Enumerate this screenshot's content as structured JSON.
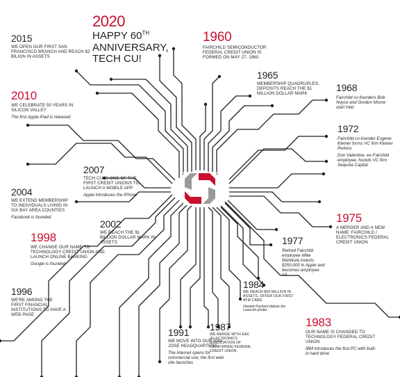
{
  "colors": {
    "accent": "#c8102e",
    "ink": "#231f20",
    "logo_gray": "#9a9a9a"
  },
  "events": {
    "e2020": {
      "year": "2020",
      "caption_a": "HAPPY 60",
      "caption_sup": "TH",
      "caption_b": "ANNIVERSARY,",
      "caption_c": "TECH CU!"
    },
    "e2015": {
      "year": "2015",
      "caption": "WE OPEN OUR FIRST SAN FRANCISCO BRANCH AND REACH $2 BILION IN ASSETS"
    },
    "e2010": {
      "year": "2010",
      "caption": "WE CELEBRATE 50 YEARS IN SILICON VALLEY",
      "note": "The first Apple iPad is released"
    },
    "e2007": {
      "year": "2007",
      "caption": "TECH CU IS ONE OF THE FIRST CREDIT UNIONS TO LAUNCH A MOBILE APP",
      "note": "Apple introduces the iPhone"
    },
    "e2004": {
      "year": "2004",
      "caption": "WE EXTEND MEMBERSHIP TO INDIVIDUALS LIVING IN SIX BAY AREA COUNTIES",
      "note": "Facebook is founded"
    },
    "e2002": {
      "year": "2002",
      "caption": "WE REACH THE $1 BILLION DOLLAR MARK IN ASSETS"
    },
    "e1998": {
      "year": "1998",
      "caption": "WE CHANGE OUR NAME TO TECHNOLOGY CREDIT UNION AND LAUNCH ONLINE BANKING",
      "note": "Google is founded"
    },
    "e1996": {
      "year": "1996",
      "caption": "WE'RE AMONG THE FIRST FINANCIAL INSTITUTIONS TO HAVE A WEB PAGE"
    },
    "e1991": {
      "year": "1991",
      "caption": "WE MOVE INTO OUR SAN JOSE HEADQUARTERS",
      "note": "The Internet opens for commercial use; the first web site launches"
    },
    "e1987": {
      "year": "1987",
      "caption": "WE MERGE WITH EAC (ELECTRONICS ASSOCIATION OF CALIFORNIA) FEDERAL CREDIT UNION"
    },
    "e1984": {
      "year": "1984",
      "caption": "WE REACH $50 MILLION IN ASSETS, OFFER OUR FIRST ATM CARD",
      "note": "Hewlett Packard debuts the LaserJet printer"
    },
    "e1983": {
      "year": "1983",
      "caption": "OUR NAME IS CHANGED TO TECHNOLOGY FEDERAL CREDIT UNION",
      "note": "IBM introduces the first PC with built-in hard drive"
    },
    "e1977": {
      "year": "1977",
      "note": "Retired Fairchild employee Mike Markkula invests $250,000 in Apple and becomes employee #3"
    },
    "e1975": {
      "year": "1975",
      "caption": "A MERGER AND A NEW NAME: FAIRCHILD / ELECTRONICS FEDERAL CREDIT UNION"
    },
    "e1972": {
      "year": "1972",
      "note": "Fairchild co-founder Eugene Kleiner forms VC firm Kleiner Perkins",
      "note2": "Don Valentine, ex-Fairchild employee, founds VC firm Sequoia Capital"
    },
    "e1968": {
      "year": "1968",
      "note": "Fairchild co-founders Bob Noyce and Gordon Moore start Intel"
    },
    "e1965": {
      "year": "1965",
      "caption": "MEMBERSHIP QUADRUPLES; DEPOSITS REACH THE $1 MILLION DOLLAR MARK"
    },
    "e1960": {
      "year": "1960",
      "caption": "FAIRCHILD SEMICONDUCTOR FEDERAL CREDIT UNION IS FORMED ON MAY 27, 1960"
    }
  }
}
